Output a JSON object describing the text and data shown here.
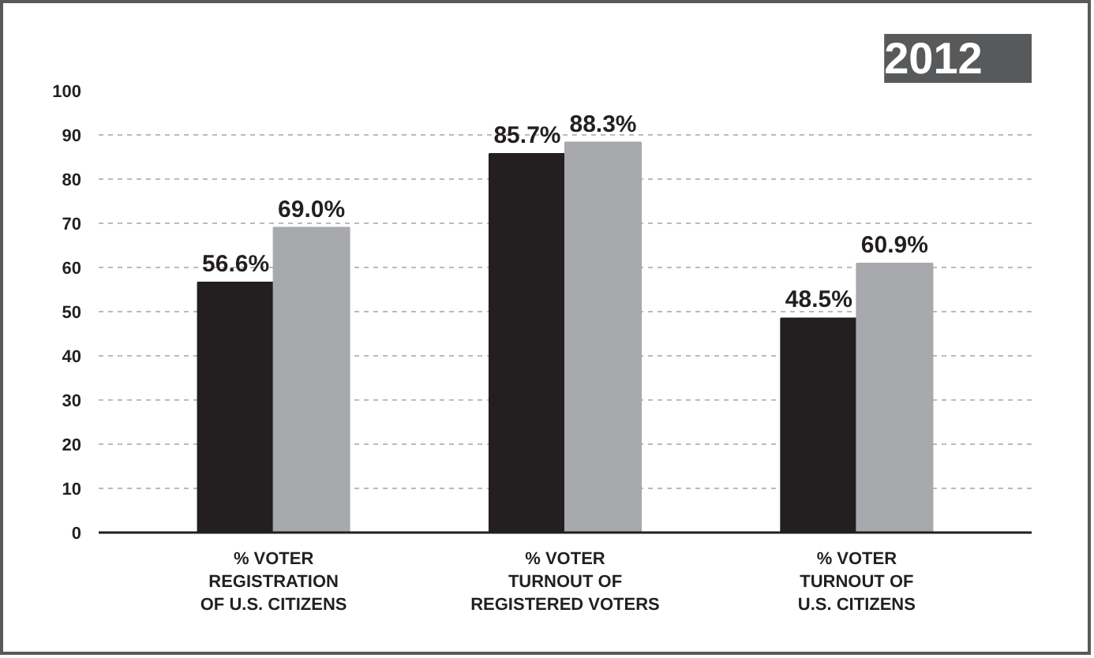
{
  "chart_data": {
    "type": "bar",
    "title": "2012",
    "categories": [
      "% VOTER\nREGISTRATION\nOF U.S. CITIZENS",
      "% VOTER\nTURNOUT OF\nREGISTERED VOTERS",
      "% VOTER\nTURNOUT OF\nU.S. CITIZENS"
    ],
    "series": [
      {
        "color": "#231f20",
        "values": [
          56.6,
          85.7,
          48.5
        ],
        "value_labels": [
          "56.6%",
          "85.7%",
          "48.5%"
        ]
      },
      {
        "color": "#a7a9ac",
        "values": [
          69.0,
          88.3,
          60.9
        ],
        "value_labels": [
          "69.0%",
          "88.3%",
          "60.9%"
        ]
      }
    ],
    "ylim": [
      0,
      100
    ],
    "yticks": [
      0,
      10,
      20,
      30,
      40,
      50,
      60,
      70,
      80,
      90,
      100
    ],
    "grid": "y"
  }
}
